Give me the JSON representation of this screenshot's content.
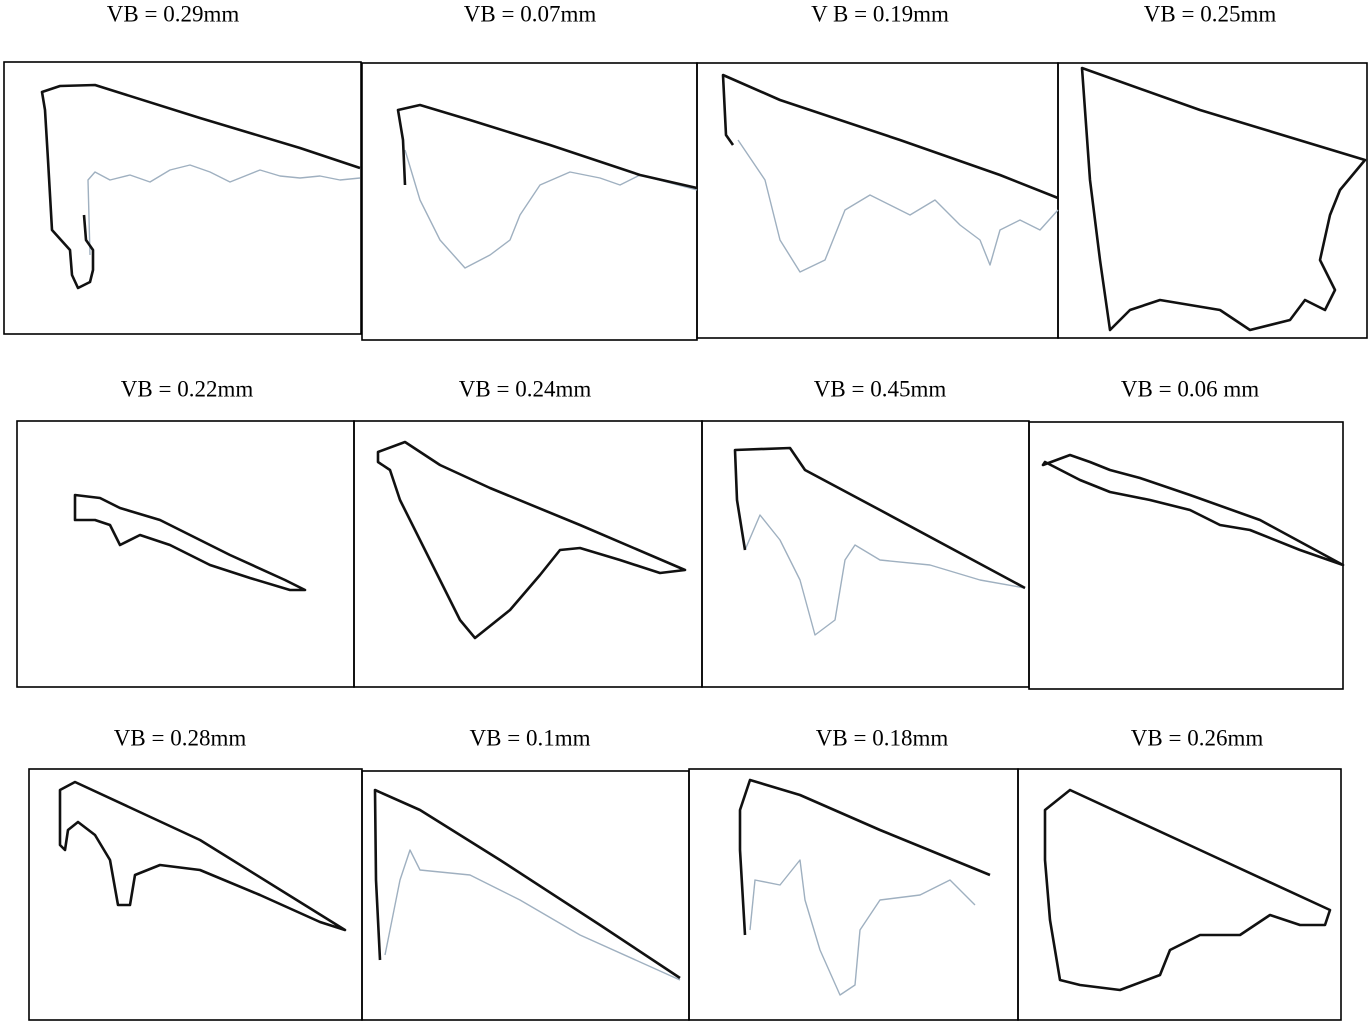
{
  "panels": [
    "VB = 0.29mm",
    "VB = 0.07mm",
    "V B = 0.19mm",
    "VB = 0.25mm",
    "VB = 0.22mm",
    "VB = 0.24mm",
    "VB = 0.45mm",
    "VB = 0.06 mm",
    "VB = 0.28mm",
    "VB = 0.1mm",
    "VB = 0.18mm",
    "VB = 0.26mm"
  ]
}
